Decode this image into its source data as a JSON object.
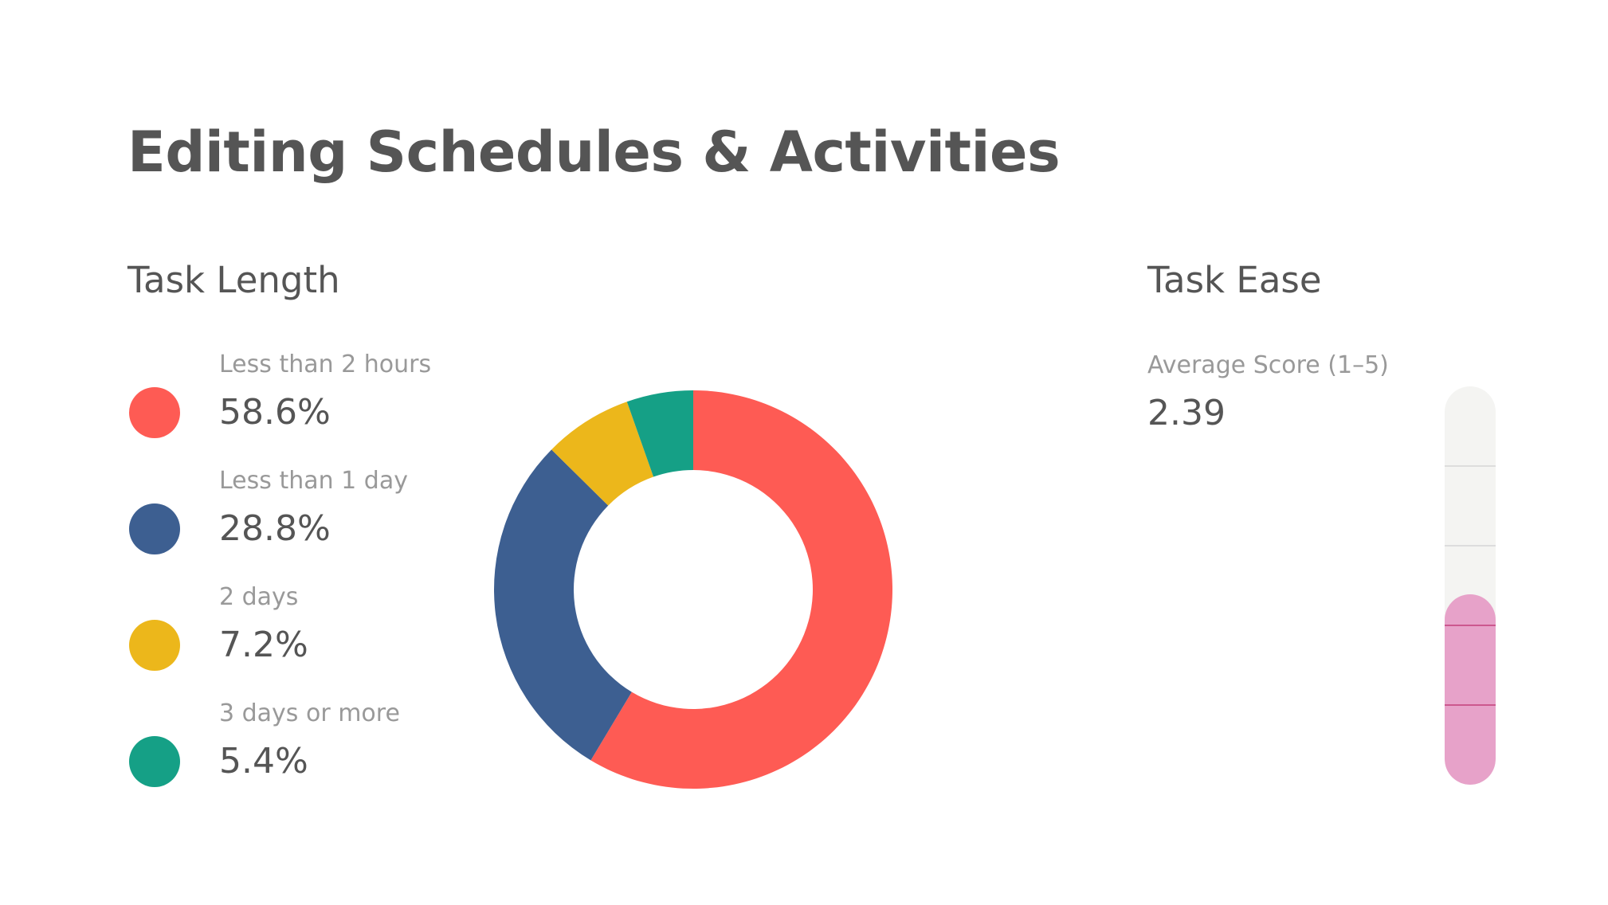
{
  "title": "Editing Schedules & Activities",
  "task_length": {
    "heading": "Task Length",
    "items": [
      {
        "label": "Less than 2 hours",
        "value": "58.6%",
        "color": "#fe5b54"
      },
      {
        "label": "Less than 1 day",
        "value": "28.8%",
        "color": "#3d5f91"
      },
      {
        "label": "2 days",
        "value": "7.2%",
        "color": "#ecb71b"
      },
      {
        "label": "3 days or more",
        "value": "5.4%",
        "color": "#15a086"
      }
    ]
  },
  "task_ease": {
    "heading": "Task Ease",
    "score_label": "Average Score (1–5)",
    "score_value": "2.39",
    "scale_min": 0,
    "scale_max": 5,
    "score": 2.39,
    "fill_color": "#e7a2c9",
    "track_color": "#f4f4f2",
    "tick_color_track": "#dddddd",
    "tick_color_fill": "#c6467f"
  },
  "chart_data": [
    {
      "type": "pie",
      "title": "Task Length",
      "categories": [
        "Less than 2 hours",
        "Less than 1 day",
        "2 days",
        "3 days or more"
      ],
      "values": [
        58.6,
        28.8,
        7.2,
        5.4
      ],
      "colors": [
        "#fe5b54",
        "#3d5f91",
        "#ecb71b",
        "#15a086"
      ],
      "donut": true
    },
    {
      "type": "bar",
      "title": "Task Ease",
      "categories": [
        "Average Score (1–5)"
      ],
      "values": [
        2.39
      ],
      "ylim": [
        0,
        5
      ]
    }
  ]
}
